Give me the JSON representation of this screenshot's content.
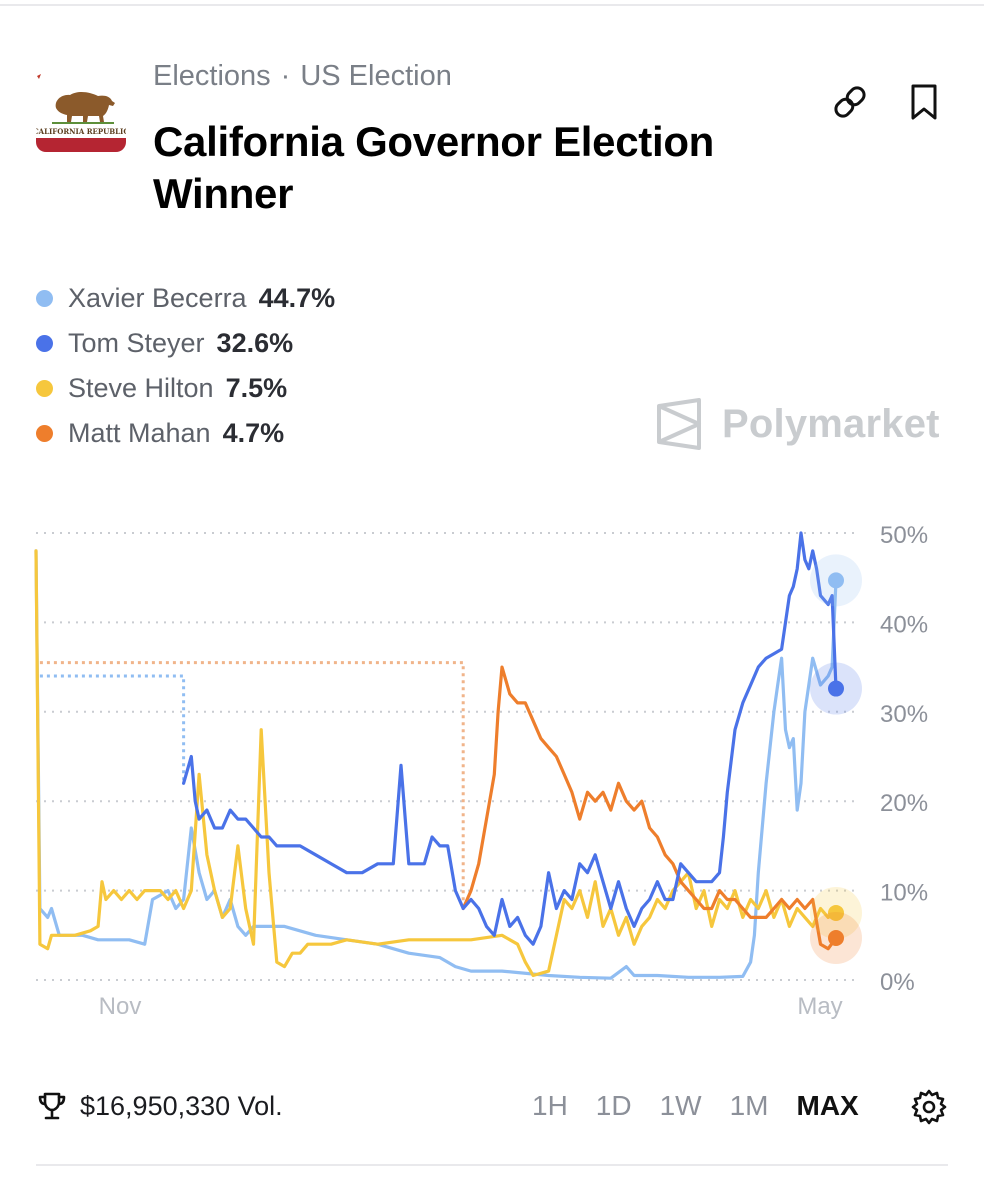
{
  "breadcrumb": [
    "Elections",
    "US Election"
  ],
  "breadcrumb_sep": "·",
  "title": "California Governor Election Winner",
  "flag_text": "CALIFORNIA REPUBLIC",
  "watermark": "Polymarket",
  "volume": "$16,950,330 Vol.",
  "ranges": [
    "1H",
    "1D",
    "1W",
    "1M",
    "MAX"
  ],
  "active_range": "MAX",
  "icons": {
    "link": "link-icon",
    "bookmark": "bookmark-icon",
    "trophy": "trophy-icon",
    "settings": "gear-icon"
  },
  "colors": {
    "becerra": "#90bdf2",
    "steyer": "#4a72e8",
    "hilton": "#f6c73d",
    "mahan": "#ee7e2c"
  },
  "legend": [
    {
      "name": "Xavier Becerra",
      "value": "44.7%",
      "color": "#90bdf2"
    },
    {
      "name": "Tom Steyer",
      "value": "32.6%",
      "color": "#4a72e8"
    },
    {
      "name": "Steve Hilton",
      "value": "7.5%",
      "color": "#f6c73d"
    },
    {
      "name": "Matt Mahan",
      "value": "4.7%",
      "color": "#ee7e2c"
    }
  ],
  "chart_data": {
    "type": "line",
    "title": "",
    "xlabel": "",
    "ylabel": "",
    "x_ticks": [
      "Nov",
      "May"
    ],
    "y_ticks": [
      "50%",
      "40%",
      "30%",
      "20%",
      "10%",
      "0%"
    ],
    "ylim": [
      0,
      50
    ],
    "xlim": [
      0,
      100
    ],
    "grid": true,
    "note_x": "x is relative time position in percent of the visible range",
    "series": [
      {
        "name": "Xavier Becerra",
        "color": "#90bdf2",
        "points": [
          [
            0,
            48
          ],
          [
            0.5,
            8
          ],
          [
            1.5,
            7
          ],
          [
            2,
            8
          ],
          [
            3,
            5
          ],
          [
            6,
            5
          ],
          [
            8,
            4.5
          ],
          [
            10,
            4.5
          ],
          [
            12,
            4.5
          ],
          [
            14,
            4
          ],
          [
            15,
            9
          ],
          [
            16,
            9.5
          ],
          [
            17,
            10
          ],
          [
            18,
            8
          ],
          [
            19,
            9
          ],
          [
            20,
            17
          ],
          [
            21,
            12
          ],
          [
            22,
            9
          ],
          [
            23,
            10
          ],
          [
            24,
            7
          ],
          [
            25,
            9
          ],
          [
            26,
            6
          ],
          [
            27,
            5
          ],
          [
            28,
            6
          ],
          [
            32,
            6
          ],
          [
            36,
            5
          ],
          [
            40,
            4.5
          ],
          [
            44,
            4
          ],
          [
            48,
            3
          ],
          [
            52,
            2.5
          ],
          [
            54,
            1.5
          ],
          [
            56,
            1
          ],
          [
            60,
            1
          ],
          [
            66,
            0.5
          ],
          [
            70,
            0.3
          ],
          [
            74,
            0.2
          ],
          [
            76,
            1.5
          ],
          [
            77,
            0.5
          ],
          [
            80,
            0.5
          ],
          [
            84,
            0.3
          ],
          [
            88,
            0.3
          ],
          [
            91,
            0.4
          ],
          [
            92,
            2
          ],
          [
            92.5,
            5
          ],
          [
            93,
            12
          ],
          [
            94,
            22
          ],
          [
            95,
            30
          ],
          [
            95.5,
            33
          ],
          [
            96,
            36
          ],
          [
            96.5,
            28
          ],
          [
            97,
            26
          ],
          [
            97.5,
            27
          ],
          [
            98,
            19
          ],
          [
            98.5,
            22
          ],
          [
            99,
            30
          ],
          [
            99.5,
            33
          ],
          [
            100,
            36
          ],
          [
            101,
            33
          ],
          [
            102,
            34
          ],
          [
            102.5,
            35
          ],
          [
            103,
            44.7
          ]
        ]
      },
      {
        "name": "Tom Steyer",
        "color": "#4a72e8",
        "points": [
          [
            19,
            22
          ],
          [
            20,
            25
          ],
          [
            20.5,
            20
          ],
          [
            21,
            18
          ],
          [
            22,
            19
          ],
          [
            23,
            17
          ],
          [
            24,
            17
          ],
          [
            25,
            19
          ],
          [
            26,
            18
          ],
          [
            27,
            18
          ],
          [
            28,
            17
          ],
          [
            29,
            16
          ],
          [
            30,
            16
          ],
          [
            31,
            15
          ],
          [
            32,
            15
          ],
          [
            34,
            15
          ],
          [
            36,
            14
          ],
          [
            38,
            13
          ],
          [
            40,
            12
          ],
          [
            42,
            12
          ],
          [
            44,
            13
          ],
          [
            46,
            13
          ],
          [
            47,
            24
          ],
          [
            48,
            13
          ],
          [
            49,
            13
          ],
          [
            50,
            13
          ],
          [
            51,
            16
          ],
          [
            52,
            15
          ],
          [
            53,
            15
          ],
          [
            54,
            10
          ],
          [
            55,
            8
          ],
          [
            56,
            9
          ],
          [
            57,
            8
          ],
          [
            58,
            6
          ],
          [
            59,
            5
          ],
          [
            60,
            9
          ],
          [
            61,
            6
          ],
          [
            62,
            7
          ],
          [
            63,
            5
          ],
          [
            64,
            4
          ],
          [
            65,
            6
          ],
          [
            66,
            12
          ],
          [
            67,
            8
          ],
          [
            68,
            10
          ],
          [
            69,
            9
          ],
          [
            70,
            13
          ],
          [
            71,
            12
          ],
          [
            72,
            14
          ],
          [
            73,
            11
          ],
          [
            74,
            8
          ],
          [
            75,
            11
          ],
          [
            76,
            8
          ],
          [
            77,
            6
          ],
          [
            78,
            8
          ],
          [
            79,
            9
          ],
          [
            80,
            11
          ],
          [
            81,
            9
          ],
          [
            82,
            9
          ],
          [
            83,
            13
          ],
          [
            84,
            12
          ],
          [
            85,
            11
          ],
          [
            86,
            11
          ],
          [
            87,
            11
          ],
          [
            88,
            12
          ],
          [
            88.5,
            16
          ],
          [
            89,
            21
          ],
          [
            90,
            28
          ],
          [
            91,
            31
          ],
          [
            92,
            33
          ],
          [
            93,
            35
          ],
          [
            94,
            36
          ],
          [
            95,
            36.5
          ],
          [
            96,
            37
          ],
          [
            96.5,
            40
          ],
          [
            97,
            43
          ],
          [
            97.5,
            44
          ],
          [
            98,
            46
          ],
          [
            98.5,
            50
          ],
          [
            99,
            47
          ],
          [
            99.5,
            46
          ],
          [
            100,
            48
          ],
          [
            100.5,
            46
          ],
          [
            101,
            43
          ],
          [
            102,
            42
          ],
          [
            102.5,
            43
          ],
          [
            103,
            32.6
          ]
        ]
      },
      {
        "name": "Steve Hilton",
        "color": "#f6c73d",
        "points": [
          [
            0,
            48
          ],
          [
            0.5,
            4
          ],
          [
            1.5,
            3.5
          ],
          [
            2,
            5
          ],
          [
            3,
            5
          ],
          [
            5,
            5
          ],
          [
            7,
            5.5
          ],
          [
            8,
            6
          ],
          [
            8.5,
            11
          ],
          [
            9,
            9
          ],
          [
            10,
            10
          ],
          [
            11,
            9
          ],
          [
            12,
            10
          ],
          [
            13,
            9
          ],
          [
            14,
            10
          ],
          [
            15,
            10
          ],
          [
            16,
            10
          ],
          [
            17,
            9
          ],
          [
            18,
            10
          ],
          [
            19,
            8
          ],
          [
            20,
            10
          ],
          [
            21,
            23
          ],
          [
            22,
            14
          ],
          [
            23,
            10
          ],
          [
            24,
            7
          ],
          [
            25,
            8
          ],
          [
            26,
            15
          ],
          [
            27,
            8
          ],
          [
            28,
            4
          ],
          [
            29,
            28
          ],
          [
            30,
            12
          ],
          [
            31,
            2
          ],
          [
            32,
            1.5
          ],
          [
            33,
            3
          ],
          [
            34,
            3
          ],
          [
            35,
            4
          ],
          [
            38,
            4
          ],
          [
            40,
            4.5
          ],
          [
            44,
            4
          ],
          [
            48,
            4.5
          ],
          [
            52,
            4.5
          ],
          [
            56,
            4.5
          ],
          [
            60,
            5
          ],
          [
            62,
            4
          ],
          [
            63,
            2
          ],
          [
            64,
            0.5
          ],
          [
            66,
            1
          ],
          [
            67,
            5
          ],
          [
            68,
            9
          ],
          [
            69,
            8
          ],
          [
            70,
            10
          ],
          [
            71,
            7
          ],
          [
            72,
            11
          ],
          [
            73,
            6
          ],
          [
            74,
            8
          ],
          [
            75,
            5
          ],
          [
            76,
            7
          ],
          [
            77,
            4
          ],
          [
            78,
            6
          ],
          [
            79,
            7
          ],
          [
            80,
            9
          ],
          [
            81,
            8
          ],
          [
            82,
            10
          ],
          [
            83,
            11
          ],
          [
            84,
            12
          ],
          [
            85,
            8
          ],
          [
            86,
            10
          ],
          [
            87,
            6
          ],
          [
            88,
            9
          ],
          [
            89,
            8
          ],
          [
            90,
            10
          ],
          [
            91,
            7
          ],
          [
            92,
            9
          ],
          [
            93,
            8
          ],
          [
            94,
            10
          ],
          [
            95,
            7
          ],
          [
            96,
            9
          ],
          [
            97,
            6
          ],
          [
            98,
            8
          ],
          [
            99,
            7
          ],
          [
            100,
            6
          ],
          [
            101,
            8
          ],
          [
            102,
            7
          ],
          [
            103,
            7.5
          ]
        ]
      },
      {
        "name": "Matt Mahan",
        "color": "#ee7e2c",
        "points": [
          [
            55,
            8
          ],
          [
            56,
            10
          ],
          [
            57,
            13
          ],
          [
            58,
            18
          ],
          [
            59,
            23
          ],
          [
            59.5,
            30
          ],
          [
            60,
            35
          ],
          [
            61,
            32
          ],
          [
            62,
            31
          ],
          [
            63,
            31
          ],
          [
            64,
            29
          ],
          [
            65,
            27
          ],
          [
            66,
            26
          ],
          [
            67,
            25
          ],
          [
            68,
            23
          ],
          [
            69,
            21
          ],
          [
            70,
            18
          ],
          [
            71,
            21
          ],
          [
            72,
            20
          ],
          [
            73,
            21
          ],
          [
            74,
            19
          ],
          [
            75,
            22
          ],
          [
            76,
            20
          ],
          [
            77,
            19
          ],
          [
            78,
            20
          ],
          [
            79,
            17
          ],
          [
            80,
            16
          ],
          [
            81,
            14
          ],
          [
            82,
            13
          ],
          [
            83,
            11
          ],
          [
            84,
            10
          ],
          [
            85,
            9
          ],
          [
            86,
            8
          ],
          [
            87,
            8
          ],
          [
            88,
            10
          ],
          [
            89,
            9
          ],
          [
            90,
            9
          ],
          [
            91,
            8
          ],
          [
            92,
            7
          ],
          [
            93,
            7
          ],
          [
            94,
            7
          ],
          [
            95,
            8
          ],
          [
            96,
            9
          ],
          [
            97,
            8
          ],
          [
            98,
            9
          ],
          [
            99,
            8
          ],
          [
            100,
            9
          ],
          [
            101,
            4
          ],
          [
            102,
            3.5
          ],
          [
            103,
            4.7
          ]
        ]
      }
    ],
    "dotted_series": [
      {
        "name": "Xavier Becerra",
        "color": "#90bdf2",
        "points": [
          [
            0.5,
            34
          ],
          [
            19,
            34
          ],
          [
            19,
            22
          ]
        ]
      },
      {
        "name": "Matt Mahan",
        "color": "#f0b48a",
        "points": [
          [
            0.5,
            35.5
          ],
          [
            55,
            35.5
          ],
          [
            55,
            8
          ]
        ]
      }
    ]
  }
}
